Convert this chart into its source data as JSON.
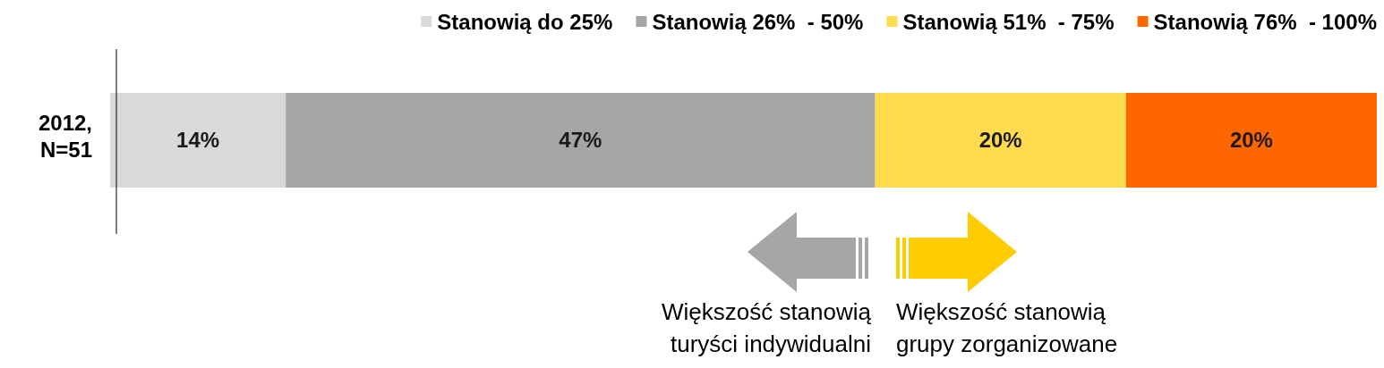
{
  "chart_data": {
    "type": "bar",
    "orientation": "horizontal",
    "stacked": true,
    "categories": [
      "2012, N=51"
    ],
    "series": [
      {
        "name": "Stanowią do 25%",
        "color": "#d9d9d9",
        "values": [
          14
        ],
        "value_labels": [
          "14%"
        ]
      },
      {
        "name": "Stanowią 26%  - 50%",
        "color": "#a6a6a6",
        "values": [
          47
        ],
        "value_labels": [
          "47%"
        ]
      },
      {
        "name": "Stanowią 51%  - 75%",
        "color": "#ffdb4d",
        "values": [
          20
        ],
        "value_labels": [
          "20%"
        ]
      },
      {
        "name": "Stanowią 76%  - 100%",
        "color": "#ff6600",
        "values": [
          20
        ],
        "value_labels": [
          "20%"
        ]
      }
    ],
    "legend": "top",
    "annotations": [
      "Większość stanowią turyści indywidualni",
      "Większość stanowią grupy zorganizowane"
    ]
  }
}
